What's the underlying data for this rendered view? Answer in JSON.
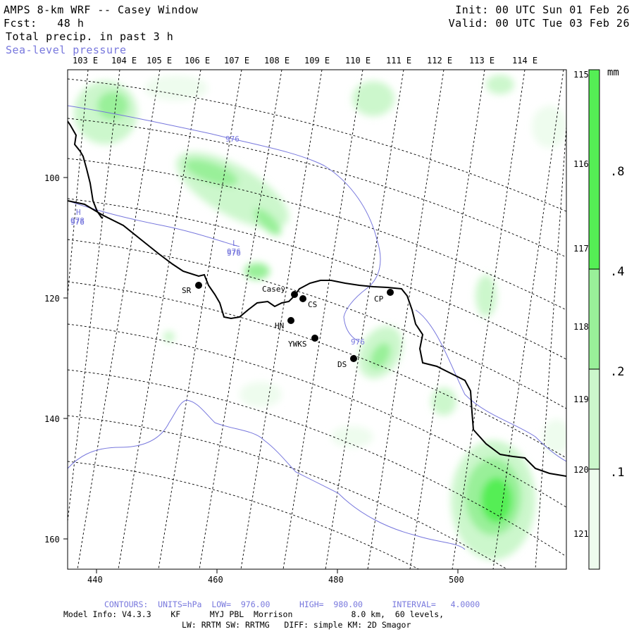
{
  "header": {
    "title": "AMPS 8-km WRF -- Casey Window",
    "fcst": "Fcst:   48 h",
    "field": "Total precip. in past 3 h",
    "overlay": "Sea-level pressure",
    "init": "Init: 00 UTC Sun 01 Feb 26",
    "valid": "Valid: 00 UTC Tue 03 Feb 26"
  },
  "lon_labels": [
    "103 E",
    "104 E",
    "105 E",
    "106 E",
    "107 E",
    "108 E",
    "109 E",
    "110 E",
    "111 E",
    "112 E",
    "113 E",
    "114 E"
  ],
  "lat_labels": [
    "115 E",
    "116 E",
    "117 E",
    "118 E",
    "119 E",
    "120 E",
    "121 E"
  ],
  "x_ticks": [
    "440",
    "460",
    "480",
    "500"
  ],
  "y_ticks": [
    "100",
    "120",
    "140",
    "160"
  ],
  "stations": [
    {
      "code": "SR"
    },
    {
      "code": "Casey"
    },
    {
      "code": "CS"
    },
    {
      "code": "HN"
    },
    {
      "code": "YWKS"
    },
    {
      "code": "DS"
    },
    {
      "code": "CP"
    }
  ],
  "pressure_labels": [
    "976",
    "976",
    "976",
    "976"
  ],
  "highs_lows": [
    {
      "mark": "H",
      "value": "978"
    },
    {
      "mark": "L",
      "value": "976"
    }
  ],
  "colorbar": {
    "unit": "mm",
    "labels": [
      ".8",
      ".4",
      ".2",
      ".1"
    ],
    "colors": {
      "c08": "#55ee55",
      "c04": "#99f099",
      "c02": "#ccf7cc",
      "c01": "#eefcee"
    }
  },
  "footer": {
    "contours": "CONTOURS:  UNITS=hPa  LOW=  976.00      HIGH=  980.00      INTERVAL=   4.0000",
    "model1": "Model Info: V4.3.3    KF      MYJ PBL  Morrison            8.0 km,  60 levels,",
    "model2": "LW: RRTM SW: RRTMG   DIFF: simple KM: 2D Smagor"
  }
}
